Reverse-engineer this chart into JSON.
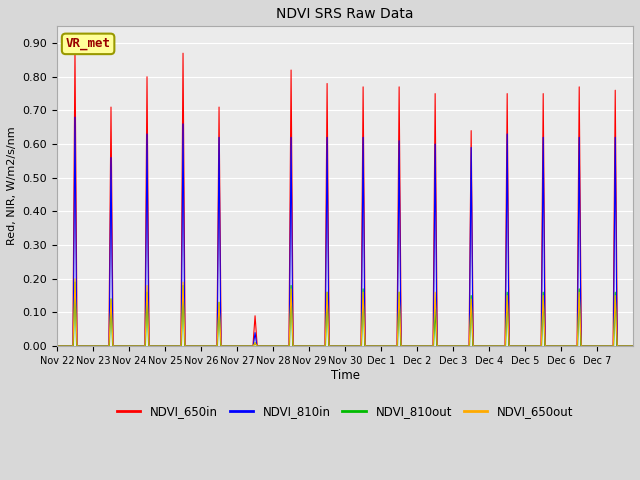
{
  "title": "NDVI SRS Raw Data",
  "xlabel": "Time",
  "ylabel": "Red, NIR, W/m2/s/nm",
  "ylim": [
    0.0,
    0.95
  ],
  "yticks": [
    0.0,
    0.1,
    0.2,
    0.3,
    0.4,
    0.5,
    0.6,
    0.7,
    0.8,
    0.9
  ],
  "colors": {
    "NDVI_650in": "#ff0000",
    "NDVI_810in": "#0000ff",
    "NDVI_810out": "#00bb00",
    "NDVI_650out": "#ffaa00"
  },
  "background_color": "#d8d8d8",
  "plot_bg_color": "#ebebeb",
  "annotation_text": "VR_met",
  "annotation_color": "#990000",
  "annotation_bg": "#ffff99",
  "annotation_border": "#999900",
  "peaks_650in": [
    0.88,
    0.71,
    0.8,
    0.87,
    0.71,
    0.09,
    0.82,
    0.78,
    0.77,
    0.77,
    0.75,
    0.64,
    0.75,
    0.75,
    0.77,
    0.76
  ],
  "peaks_810in": [
    0.68,
    0.56,
    0.63,
    0.66,
    0.62,
    0.04,
    0.62,
    0.62,
    0.62,
    0.61,
    0.6,
    0.59,
    0.63,
    0.62,
    0.62,
    0.62
  ],
  "peaks_810out": [
    0.19,
    0.14,
    0.16,
    0.18,
    0.13,
    0.01,
    0.18,
    0.16,
    0.17,
    0.16,
    0.11,
    0.15,
    0.16,
    0.16,
    0.17,
    0.16
  ],
  "peaks_650out": [
    0.2,
    0.14,
    0.18,
    0.19,
    0.13,
    0.01,
    0.17,
    0.16,
    0.16,
    0.16,
    0.16,
    0.14,
    0.15,
    0.15,
    0.16,
    0.15
  ],
  "xtick_labels": [
    "Nov 22",
    "Nov 23",
    "Nov 24",
    "Nov 25",
    "Nov 26",
    "Nov 27",
    "Nov 28",
    "Nov 29",
    "Nov 30",
    "Dec 1",
    "Dec 2",
    "Dec 3",
    "Dec 4",
    "Dec 5",
    "Dec 6",
    "Dec 7"
  ],
  "n_days": 16,
  "points_per_day": 200
}
